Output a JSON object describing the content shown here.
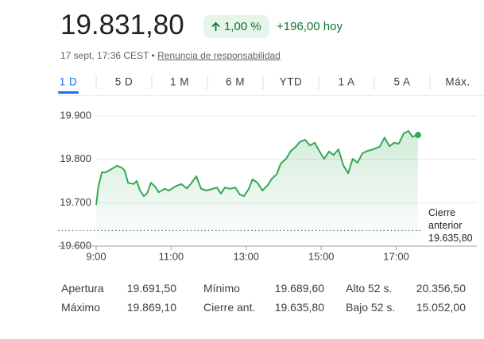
{
  "header": {
    "price": "19.831,80",
    "change_pct": "1,00 %",
    "change_abs": "+196,00 hoy",
    "timestamp": "17 sept, 17:36 CEST",
    "disclaimer": "Renuncia de responsabilidad"
  },
  "tabs": {
    "items": [
      "1 D",
      "5 D",
      "1 M",
      "6 M",
      "YTD",
      "1 A",
      "5 A",
      "Máx."
    ],
    "selected": 0
  },
  "chart_data": {
    "type": "line",
    "color": "#34a853",
    "x": [
      9.0,
      9.06,
      9.15,
      9.25,
      9.4,
      9.55,
      9.68,
      9.76,
      9.85,
      10.0,
      10.08,
      10.17,
      10.27,
      10.36,
      10.46,
      10.57,
      10.67,
      10.82,
      10.95,
      11.1,
      11.27,
      11.42,
      11.52,
      11.67,
      11.8,
      11.94,
      12.11,
      12.22,
      12.33,
      12.43,
      12.58,
      12.71,
      12.83,
      12.94,
      13.07,
      13.17,
      13.3,
      13.43,
      13.58,
      13.68,
      13.81,
      13.92,
      14.06,
      14.19,
      14.32,
      14.44,
      14.57,
      14.7,
      14.83,
      14.95,
      15.08,
      15.21,
      15.33,
      15.46,
      15.59,
      15.72,
      15.84,
      15.97,
      16.1,
      16.22,
      16.39,
      16.56,
      16.69,
      16.82,
      16.94,
      17.07,
      17.2,
      17.33,
      17.43,
      17.58
    ],
    "values": [
      19695,
      19737,
      19770,
      19770,
      19777,
      19785,
      19781,
      19774,
      19746,
      19743,
      19750,
      19728,
      19715,
      19722,
      19746,
      19737,
      19724,
      19732,
      19728,
      19737,
      19743,
      19733,
      19743,
      19761,
      19732,
      19728,
      19732,
      19735,
      19721,
      19735,
      19732,
      19735,
      19719,
      19715,
      19732,
      19754,
      19746,
      19728,
      19741,
      19755,
      19765,
      19790,
      19801,
      19819,
      19829,
      19841,
      19845,
      19832,
      19838,
      19819,
      19801,
      19818,
      19810,
      19823,
      19786,
      19768,
      19801,
      19792,
      19814,
      19819,
      19823,
      19829,
      19850,
      19830,
      19838,
      19836,
      19860,
      19865,
      19852,
      19856
    ],
    "xlim": [
      9,
      19.15
    ],
    "xticks": [
      {
        "value": 9,
        "label": "9:00"
      },
      {
        "value": 11,
        "label": "11:00"
      },
      {
        "value": 13,
        "label": "13:00"
      },
      {
        "value": 15,
        "label": "15:00"
      },
      {
        "value": 17,
        "label": "17:00"
      }
    ],
    "ylim": [
      19600,
      19900
    ],
    "yticks": [
      {
        "value": 19600,
        "label": "19.600"
      },
      {
        "value": 19700,
        "label": "19.700"
      },
      {
        "value": 19800,
        "label": "19.800"
      },
      {
        "value": 19900,
        "label": "19.900"
      }
    ],
    "grid": true,
    "reference_line": {
      "label": "Cierre anterior",
      "value": 19635.8,
      "value_label": "19.635,80"
    }
  },
  "stats": [
    [
      "Apertura",
      "19.691,50"
    ],
    [
      "Mínimo",
      "19.689,60"
    ],
    [
      "Alto 52 s.",
      "20.356,50"
    ],
    [
      "Máximo",
      "19.869,10"
    ],
    [
      "Cierre ant.",
      "19.635,80"
    ],
    [
      "Bajo 52 s.",
      "15.052,00"
    ]
  ]
}
